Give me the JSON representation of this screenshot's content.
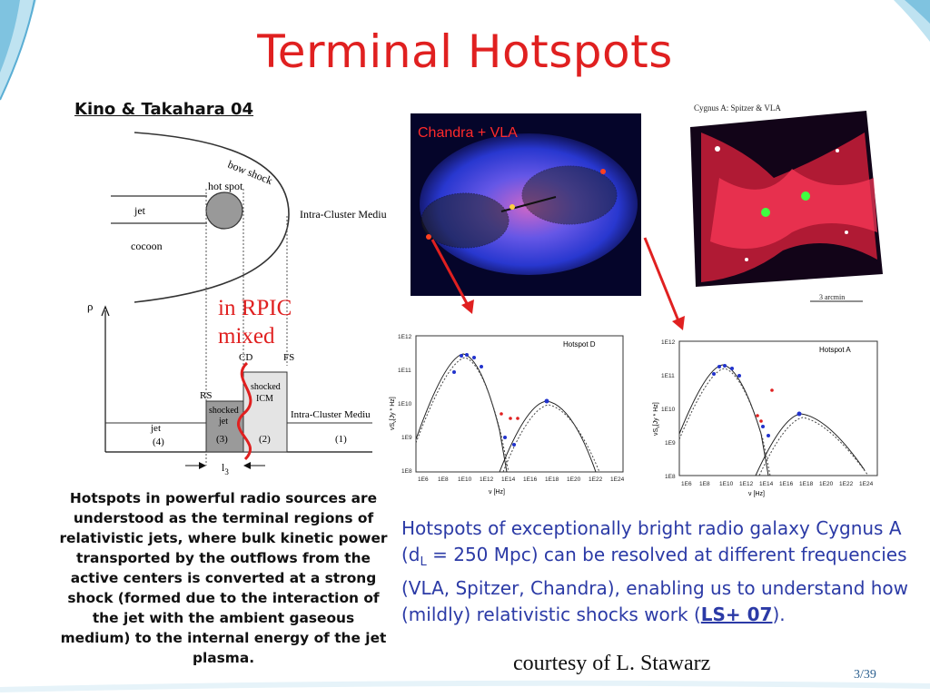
{
  "slide": {
    "title": "Terminal Hotspots",
    "reference": "Kino & Takahara 04",
    "rpic_line1": "in RPIC",
    "rpic_line2": "mixed",
    "left_caption": "Hotspots in powerful radio sources are understood as the terminal regions of relativistic jets, where bulk kinetic power transported by the outflows from the active centers is converted at a strong shock (formed due to the interaction of the jet with the ambient gaseous medium) to the internal energy of the jet plasma.",
    "right_caption_pre": "Hotspots of exceptionally bright radio galaxy Cygnus A (d",
    "right_caption_sub": "L",
    "right_caption_mid": " = 250 Mpc) can be resolved at different frequencies (VLA, Spitzer, Chandra), enabling us to understand how (mildly) relativistic shocks work (",
    "right_caption_link": "LS+ 07",
    "right_caption_post": ").",
    "courtesy": "courtesy of L. Stawarz",
    "page": "3/39"
  },
  "diagram": {
    "bow_shock": "bow shock",
    "hot_spot": "hot spot",
    "jet": "jet",
    "cocoon": "cocoon",
    "icm_top": "Intra-Cluster Mediu",
    "rho": "ρ",
    "cd": "CD",
    "fs": "FS",
    "rs": "RS",
    "shocked_icm_1": "shocked",
    "shocked_icm_2": "ICM",
    "shocked_jet_1": "shocked",
    "shocked_jet_2": "jet",
    "icm_right": "Intra-Cluster Mediu",
    "jet_bottom": "jet",
    "region4": "(4)",
    "region3": "(3)",
    "region2": "(2)",
    "region1": "(1)",
    "l3": "l",
    "l3_sub": "3"
  },
  "images": {
    "chandra_label": "Chandra + VLA",
    "spitzer_title": "Cygnus A: Spitzer & VLA",
    "spitzer_scale": "3 arcmin"
  },
  "sed_d": {
    "title": "Hotspot D",
    "y_ticks": [
      "1E12",
      "1E11",
      "1E10",
      "1E9",
      "1E8"
    ],
    "x_ticks": [
      "1E6",
      "1E8",
      "1E10",
      "1E12",
      "1E14",
      "1E16",
      "1E18",
      "1E20",
      "1E22",
      "1E24"
    ],
    "ylabel": "νS",
    "ylabel_sub": "ν",
    "ylabel_unit": "[Jy * Hz]",
    "xlabel": "ν  [Hz]"
  },
  "sed_a": {
    "title": "Hotspot A",
    "y_ticks": [
      "1E12",
      "1E11",
      "1E10",
      "1E9",
      "1E8"
    ],
    "x_ticks": [
      "1E6",
      "1E8",
      "1E10",
      "1E12",
      "1E14",
      "1E16",
      "1E18",
      "1E20",
      "1E22",
      "1E24"
    ],
    "ylabel": "νS",
    "ylabel_sub": "ν",
    "ylabel_unit": "[Jy * Hz]",
    "xlabel": "ν  [Hz]"
  },
  "colors": {
    "title": "#e02020",
    "caption_blue": "#2b3aa6",
    "arrow": "#e02020",
    "theme_blue": "#7fc3e0"
  }
}
